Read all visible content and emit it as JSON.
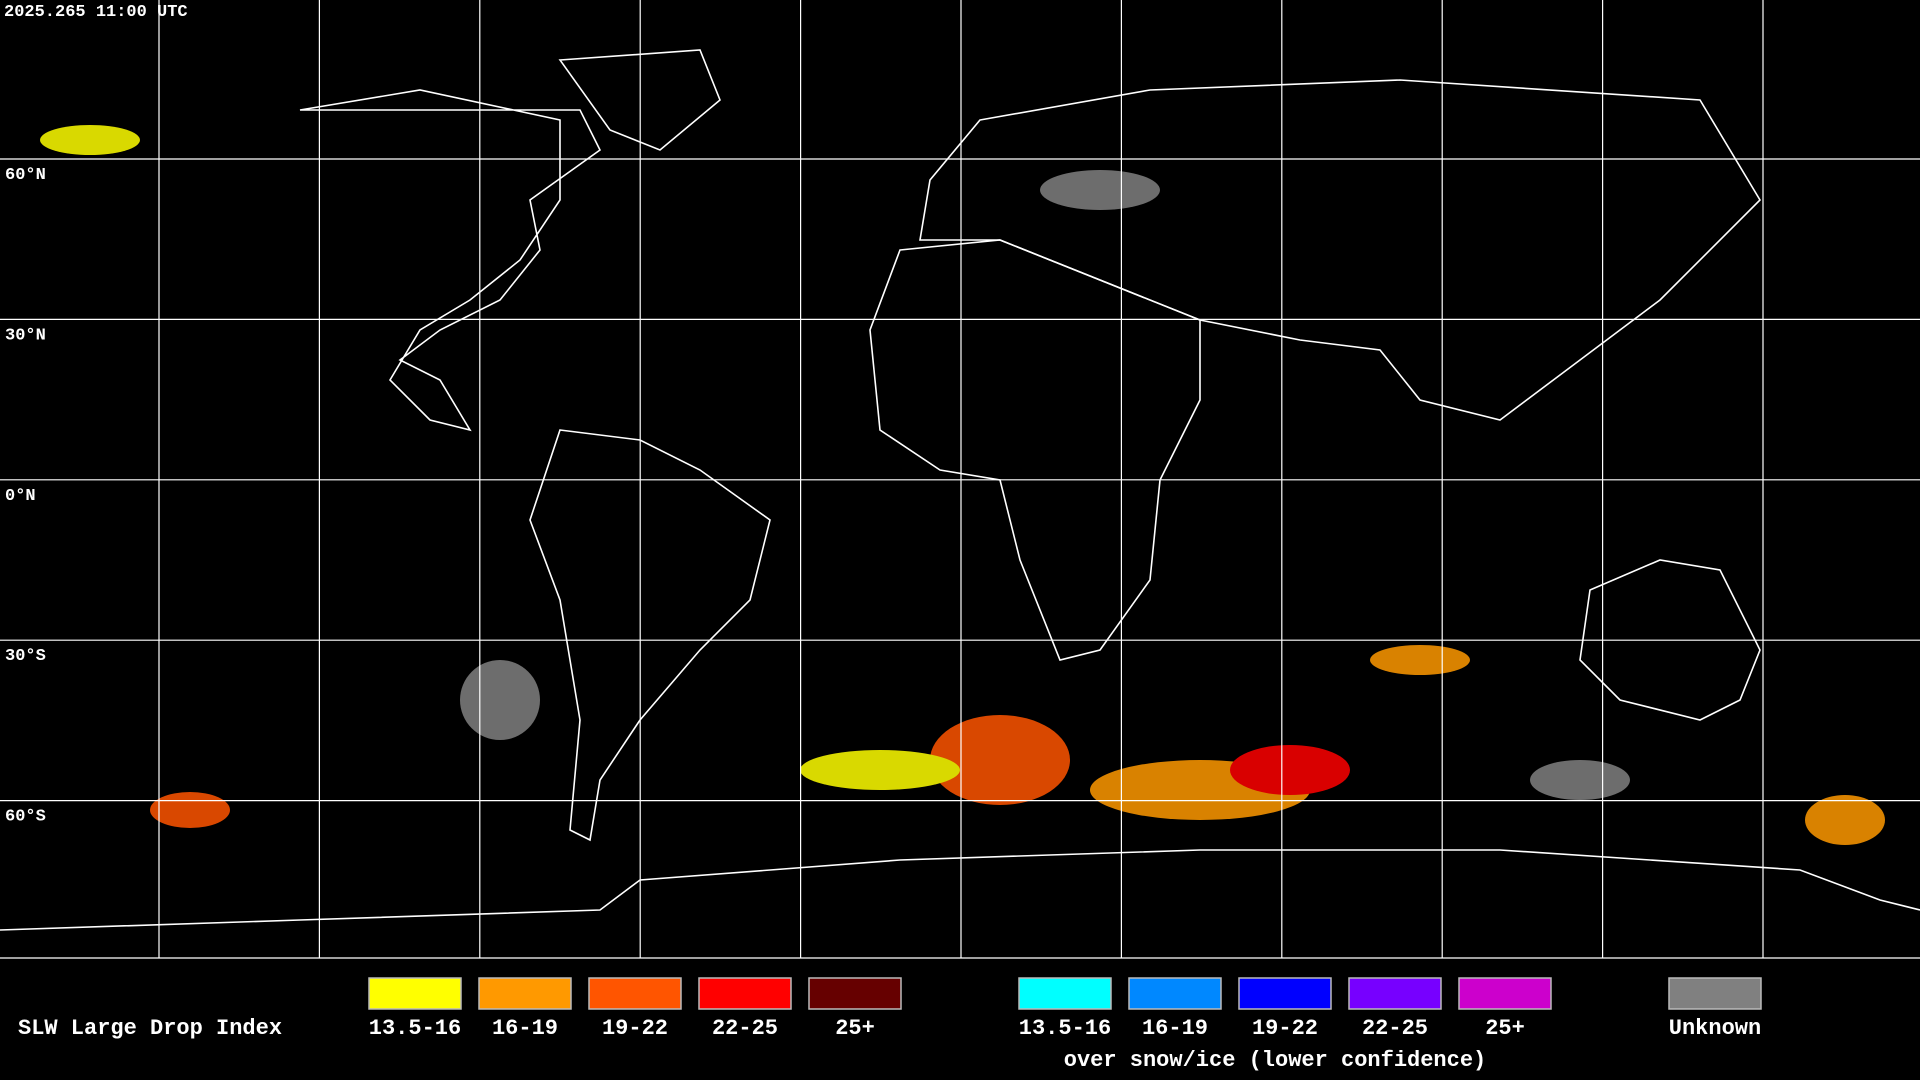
{
  "header": {
    "timestamp": "2025.265 11:00 UTC"
  },
  "grid": {
    "latitude_labels": [
      "60°N",
      "30°N",
      "0°N",
      "30°S",
      "60°S"
    ]
  },
  "legend": {
    "title": "SLW Large Drop Index",
    "classes": [
      {
        "label": "13.5-16",
        "color": "#ffff00"
      },
      {
        "label": "16-19",
        "color": "#ff9900"
      },
      {
        "label": "19-22",
        "color": "#ff5500"
      },
      {
        "label": "22-25",
        "color": "#ff0000"
      },
      {
        "label": "25+",
        "color": "#660000"
      }
    ],
    "snow_ice_classes": [
      {
        "label": "13.5-16",
        "color": "#00ffff"
      },
      {
        "label": "16-19",
        "color": "#0088ff"
      },
      {
        "label": "19-22",
        "color": "#0000ff"
      },
      {
        "label": "22-25",
        "color": "#7700ff"
      },
      {
        "label": "25+",
        "color": "#cc00cc"
      }
    ],
    "snow_ice_note": "over snow/ice (lower confidence)",
    "unknown": {
      "label": "Unknown",
      "color": "#808080"
    }
  }
}
